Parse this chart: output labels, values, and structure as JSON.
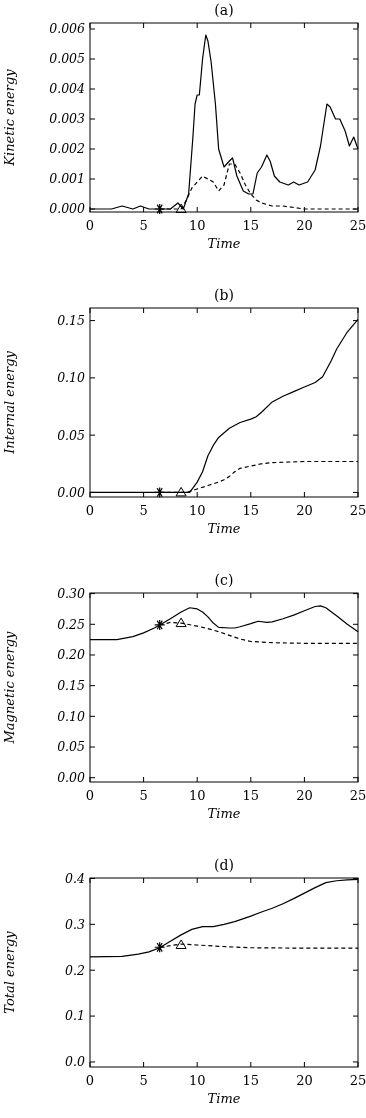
{
  "chart_data": [
    {
      "type": "line",
      "title": "(a)",
      "xlabel": "Time",
      "ylabel": "Kinetic energy",
      "xlim": [
        0,
        25
      ],
      "xticks": [
        0,
        5,
        10,
        15,
        20,
        25
      ],
      "ylim": [
        -0.0001,
        0.0062
      ],
      "yticks": [
        {
          "value": 0,
          "label": "0.000"
        },
        {
          "value": 0.001,
          "label": "0.001"
        },
        {
          "value": 0.002,
          "label": "0.002"
        },
        {
          "value": 0.003,
          "label": "0.003"
        },
        {
          "value": 0.004,
          "label": "0.004"
        },
        {
          "value": 0.005,
          "label": "0.005"
        },
        {
          "value": 0.006,
          "label": "0.006"
        }
      ],
      "grid": false,
      "series": [
        {
          "color": "#000000",
          "line_style": "solid",
          "x": [
            0,
            2,
            3,
            4,
            4.7,
            5.5,
            7.5,
            8.2,
            8.7,
            9.2,
            9.6,
            9.8,
            10,
            10.2,
            10.5,
            10.8,
            11,
            11.3,
            11.7,
            12,
            12.5,
            13,
            13.3,
            13.7,
            14.3,
            14.8,
            15.2,
            15.6,
            16,
            16.5,
            16.8,
            17.2,
            17.7,
            18.5,
            19,
            19.5,
            20.3,
            21,
            21.5,
            22.1,
            22.4,
            22.9,
            23.3,
            23.8,
            24.2,
            24.6,
            25
          ],
          "values": [
            0,
            0,
            0.0001,
            0,
            0.0001,
            0,
            0,
            0.0002,
            0,
            0.0005,
            0.0024,
            0.0035,
            0.0038,
            0.0038,
            0.005,
            0.0058,
            0.0056,
            0.0049,
            0.0035,
            0.002,
            0.0014,
            0.0016,
            0.0017,
            0.0011,
            0.0006,
            0.0005,
            0.0005,
            0.0012,
            0.0014,
            0.0018,
            0.0016,
            0.0011,
            0.0009,
            0.0008,
            0.0009,
            0.0008,
            0.0009,
            0.0013,
            0.0021,
            0.0035,
            0.0034,
            0.003,
            0.003,
            0.0026,
            0.0021,
            0.0024,
            0.002
          ]
        },
        {
          "color": "#000000",
          "line_style": "dashed",
          "x": [
            6.5,
            8.5,
            9,
            9.5,
            10,
            10.5,
            11,
            11.5,
            12,
            12.5,
            13,
            13.5,
            14,
            14.5,
            15,
            15.5,
            16,
            17,
            18,
            20,
            22,
            25
          ],
          "values": [
            0,
            0,
            0.0003,
            0.0007,
            0.0009,
            0.0011,
            0.001,
            0.0009,
            0.0006,
            0.0008,
            0.0015,
            0.0015,
            0.0012,
            0.0008,
            0.0005,
            0.0003,
            0.0002,
            0.0001,
            0.0001,
            0,
            0,
            0
          ]
        },
        {
          "type": "scatter",
          "color": "#000000",
          "marker": "cross",
          "x": [
            6.5
          ],
          "values": [
            0
          ]
        },
        {
          "type": "scatter",
          "color": "#000000",
          "marker": "triangle",
          "x": [
            8.5
          ],
          "values": [
            0
          ]
        }
      ]
    },
    {
      "type": "line",
      "title": "(b)",
      "xlabel": "Time",
      "ylabel": "Internal energy",
      "xlim": [
        0,
        25
      ],
      "xticks": [
        0,
        5,
        10,
        15,
        20,
        25
      ],
      "ylim": [
        -0.004,
        0.161
      ],
      "yticks": [
        {
          "value": 0,
          "label": "0.00"
        },
        {
          "value": 0.05,
          "label": "0.05"
        },
        {
          "value": 0.1,
          "label": "0.10"
        },
        {
          "value": 0.15,
          "label": "0.15"
        }
      ],
      "grid": false,
      "series": [
        {
          "color": "#000000",
          "line_style": "solid",
          "x": [
            0,
            9.3,
            10,
            10.5,
            11,
            11.5,
            12,
            13,
            14,
            15,
            15.5,
            16,
            17,
            18,
            19,
            20,
            21,
            21.7,
            22.5,
            23,
            24,
            25
          ],
          "values": [
            0,
            0,
            0.009,
            0.018,
            0.032,
            0.041,
            0.048,
            0.056,
            0.061,
            0.064,
            0.066,
            0.07,
            0.079,
            0.084,
            0.088,
            0.092,
            0.096,
            0.101,
            0.115,
            0.125,
            0.14,
            0.151
          ]
        },
        {
          "color": "#000000",
          "line_style": "dashed",
          "x": [
            6.5,
            9,
            10,
            11,
            12,
            12.5,
            13,
            13.5,
            14,
            15,
            16,
            17,
            20,
            25
          ],
          "values": [
            0,
            0,
            0.003,
            0.006,
            0.009,
            0.011,
            0.014,
            0.018,
            0.021,
            0.023,
            0.025,
            0.026,
            0.027,
            0.027
          ]
        },
        {
          "type": "scatter",
          "color": "#000000",
          "marker": "cross",
          "x": [
            6.5
          ],
          "values": [
            0
          ]
        },
        {
          "type": "scatter",
          "color": "#000000",
          "marker": "triangle",
          "x": [
            8.5
          ],
          "values": [
            0
          ]
        }
      ]
    },
    {
      "type": "line",
      "title": "(c)",
      "xlabel": "Time",
      "ylabel": "Magnetic energy",
      "xlim": [
        0,
        25
      ],
      "xticks": [
        0,
        5,
        10,
        15,
        20,
        25
      ],
      "ylim": [
        -0.007,
        0.301
      ],
      "yticks": [
        {
          "value": 0,
          "label": "0.00"
        },
        {
          "value": 0.05,
          "label": "0.05"
        },
        {
          "value": 0.1,
          "label": "0.10"
        },
        {
          "value": 0.15,
          "label": "0.15"
        },
        {
          "value": 0.2,
          "label": "0.20"
        },
        {
          "value": 0.25,
          "label": "0.25"
        },
        {
          "value": 0.3,
          "label": "0.30"
        }
      ],
      "grid": false,
      "series": [
        {
          "color": "#000000",
          "line_style": "solid",
          "x": [
            0,
            2.5,
            4,
            5,
            6,
            6.5,
            7.5,
            8.5,
            9.3,
            10,
            10.5,
            11,
            11.5,
            12,
            13,
            13.5,
            14,
            15,
            15.7,
            16.5,
            17,
            18,
            19,
            20,
            21,
            21.5,
            22,
            23,
            24,
            25
          ],
          "values": [
            0.225,
            0.225,
            0.23,
            0.236,
            0.244,
            0.249,
            0.259,
            0.27,
            0.277,
            0.275,
            0.27,
            0.262,
            0.252,
            0.245,
            0.244,
            0.244,
            0.246,
            0.251,
            0.255,
            0.253,
            0.254,
            0.259,
            0.265,
            0.272,
            0.279,
            0.28,
            0.277,
            0.264,
            0.25,
            0.238
          ]
        },
        {
          "color": "#000000",
          "line_style": "dashed",
          "x": [
            6.5,
            7.5,
            8.5,
            10,
            11,
            12,
            13,
            14,
            15,
            17,
            20,
            25
          ],
          "values": [
            0.249,
            0.253,
            0.252,
            0.247,
            0.243,
            0.238,
            0.232,
            0.226,
            0.222,
            0.22,
            0.219,
            0.219
          ]
        },
        {
          "type": "scatter",
          "color": "#000000",
          "marker": "cross",
          "x": [
            6.5
          ],
          "values": [
            0.249
          ]
        },
        {
          "type": "scatter",
          "color": "#000000",
          "marker": "triangle",
          "x": [
            8.5
          ],
          "values": [
            0.252
          ]
        }
      ]
    },
    {
      "type": "line",
      "title": "(d)",
      "xlabel": "Time",
      "ylabel": "Total energy",
      "xlim": [
        0,
        25
      ],
      "xticks": [
        0,
        5,
        10,
        15,
        20,
        25
      ],
      "ylim": [
        -0.011,
        0.401
      ],
      "yticks": [
        {
          "value": 0,
          "label": "0.0"
        },
        {
          "value": 0.1,
          "label": "0.1"
        },
        {
          "value": 0.2,
          "label": "0.2"
        },
        {
          "value": 0.3,
          "label": "0.3"
        },
        {
          "value": 0.4,
          "label": "0.4"
        }
      ],
      "grid": false,
      "series": [
        {
          "color": "#000000",
          "line_style": "solid",
          "x": [
            0,
            3,
            4.5,
            5.5,
            6.5,
            7.5,
            8.5,
            9.5,
            10.5,
            11.5,
            12.5,
            13.5,
            15,
            16,
            17,
            18,
            19,
            20,
            21,
            22,
            23,
            24,
            25
          ],
          "values": [
            0.229,
            0.23,
            0.235,
            0.24,
            0.249,
            0.263,
            0.277,
            0.289,
            0.295,
            0.295,
            0.3,
            0.306,
            0.318,
            0.327,
            0.335,
            0.345,
            0.356,
            0.368,
            0.38,
            0.391,
            0.395,
            0.397,
            0.398
          ]
        },
        {
          "color": "#000000",
          "line_style": "dashed",
          "x": [
            6.5,
            8.5,
            10,
            12,
            15,
            20,
            25
          ],
          "values": [
            0.25,
            0.257,
            0.255,
            0.252,
            0.249,
            0.248,
            0.248
          ]
        },
        {
          "type": "scatter",
          "color": "#000000",
          "marker": "cross",
          "x": [
            6.5
          ],
          "values": [
            0.25
          ]
        },
        {
          "type": "scatter",
          "color": "#000000",
          "marker": "triangle",
          "x": [
            8.5
          ],
          "values": [
            0.255
          ]
        }
      ]
    }
  ]
}
